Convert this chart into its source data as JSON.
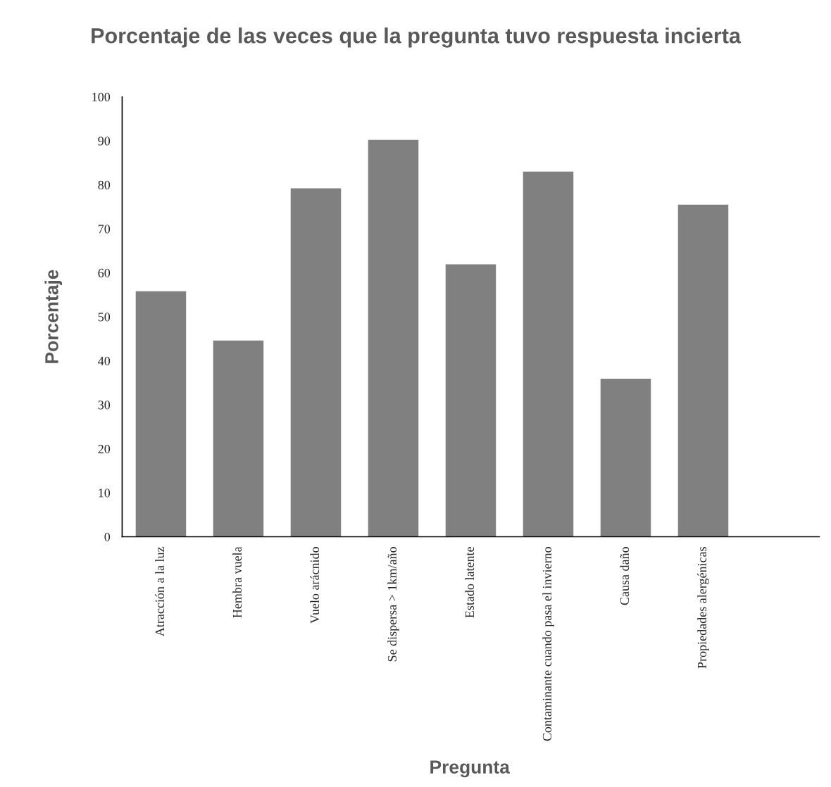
{
  "chart_data": {
    "type": "bar",
    "title": "Porcentaje de las veces que la pregunta tuvo respuesta incierta",
    "xlabel": "Pregunta",
    "ylabel": "Porcentaje",
    "categories": [
      "Atracción a la luz",
      "Hembra vuela",
      "Vuelo arácnido",
      "Se dispersa > 1km/año",
      "Estado latente",
      "Contaminante cuando pasa el invierno",
      "Causa daño",
      "Propiedades alergénicas",
      null
    ],
    "values": [
      55.8,
      44.6,
      79.2,
      90.2,
      61.9,
      83.0,
      35.9,
      75.5,
      null
    ],
    "color": "#808080",
    "ylim": [
      0,
      100
    ],
    "yticks": [
      0,
      10,
      20,
      30,
      40,
      50,
      60,
      70,
      80,
      90,
      100
    ],
    "grid": false,
    "legend": false
  }
}
